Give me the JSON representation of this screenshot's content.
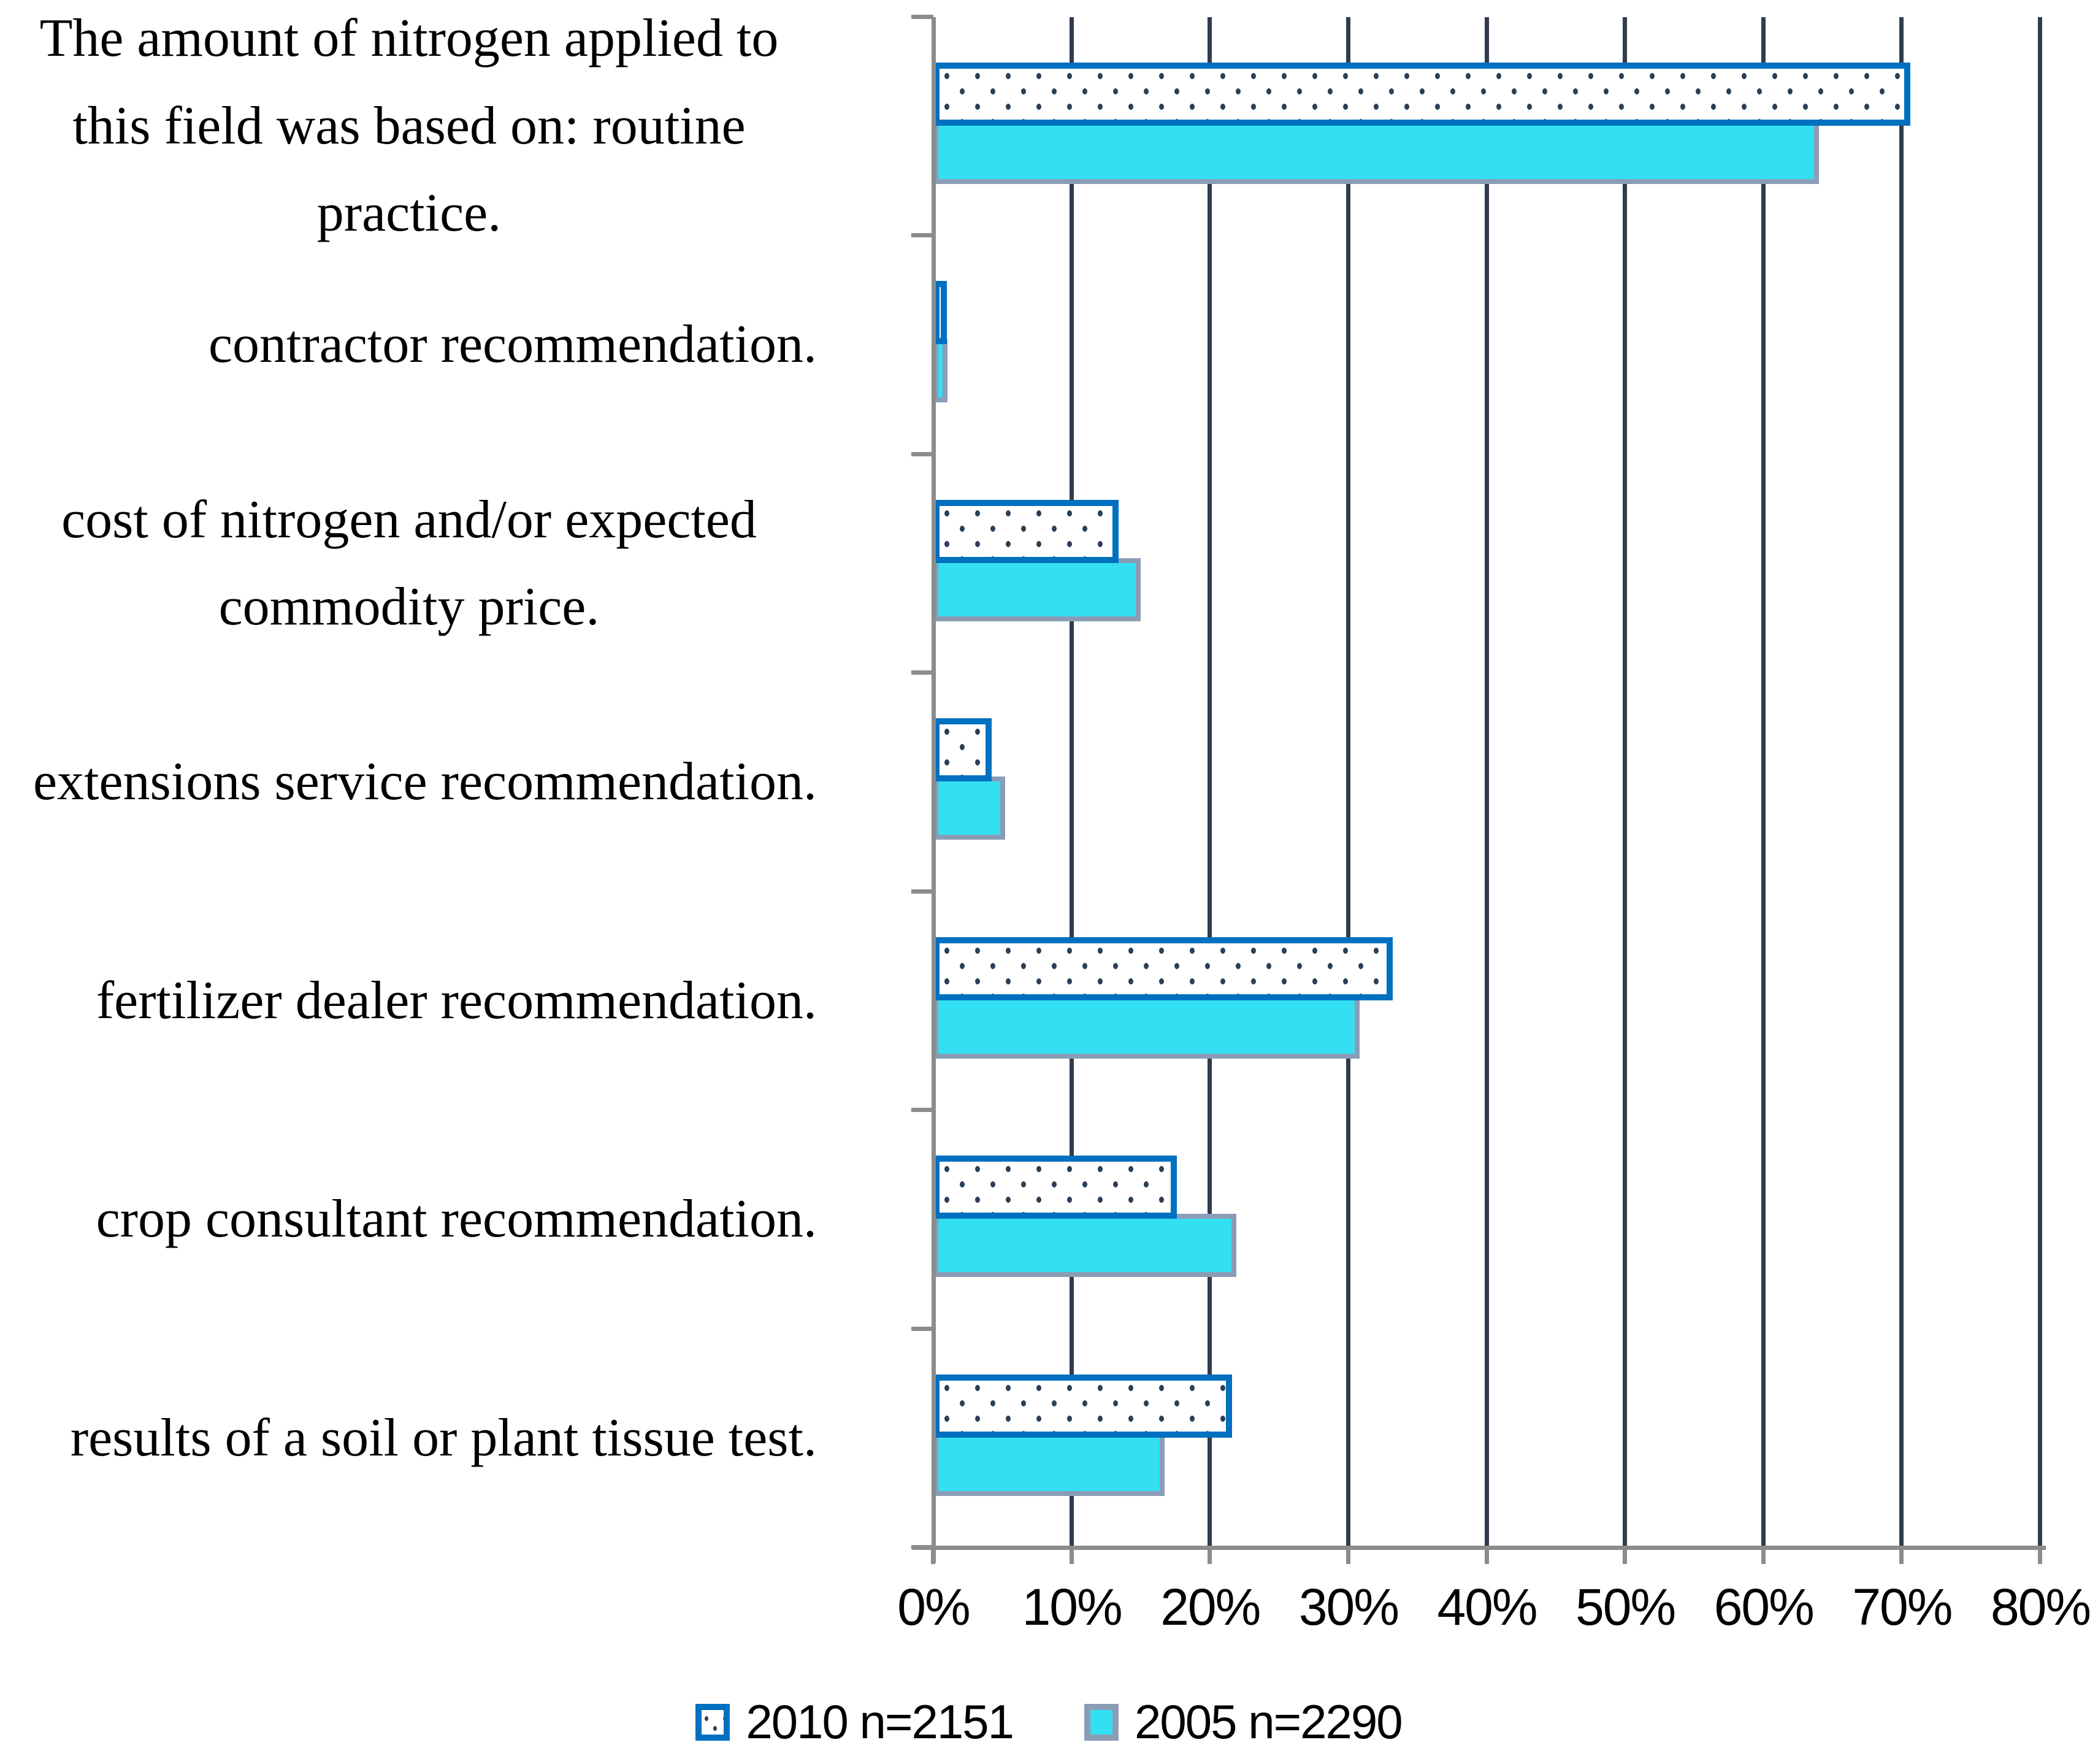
{
  "chart_data": {
    "type": "bar",
    "orientation": "horizontal",
    "title": "",
    "categories": [
      "The amount of nitrogen applied to this field was based on: routine practice.",
      "contractor recommendation.",
      "cost of nitrogen and/or expected commodity price.",
      "extensions service recommendation.",
      "fertilizer dealer recommendation.",
      "crop consultant recommendation.",
      "results of a soil or plant tissue test."
    ],
    "series": [
      {
        "name": "2010 n=2151",
        "style": "white-fill-blue-border-dotted",
        "values": [
          70.6,
          0.7,
          13.4,
          4.2,
          33.2,
          17.6,
          21.6
        ]
      },
      {
        "name": "2005 n=2290",
        "style": "solid-cyan-gray-border",
        "values": [
          64.0,
          1.0,
          15.0,
          5.2,
          30.8,
          21.9,
          16.7
        ]
      }
    ],
    "x_axis": {
      "unit": "%",
      "min": 0,
      "max": 80,
      "tick_labels": [
        "0%",
        "10%",
        "20%",
        "30%",
        "40%",
        "50%",
        "60%",
        "70%",
        "80%"
      ]
    },
    "grid": true,
    "legend_position": "bottom"
  },
  "colors": {
    "series_2010_border": "#0070C0",
    "series_2010_fill": "#FFFFFF",
    "series_2010_dots": "#2B3F55",
    "series_2005_fill": "#33E0F2",
    "series_2005_border": "#8B9DB5",
    "gridline": "#303C4E",
    "axis": "#8C8C8C",
    "text": "#000000"
  }
}
